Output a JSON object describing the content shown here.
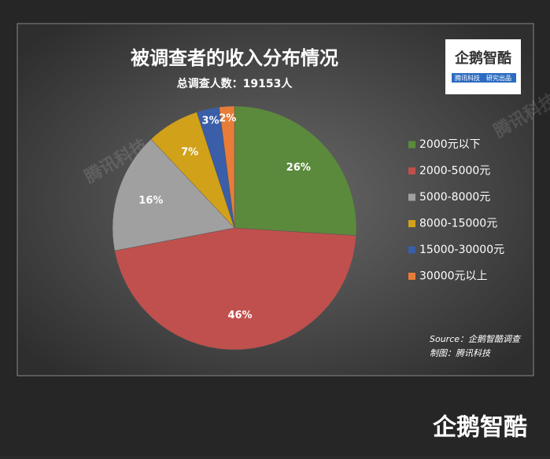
{
  "chart_data": {
    "type": "pie",
    "title": "被调查者的收入分布情况",
    "subtitle": "总调查人数：19153人",
    "categories": [
      "2000元以下",
      "2000-5000元",
      "5000-8000元",
      "8000-15000元",
      "15000-30000元",
      "30000元以上"
    ],
    "values": [
      26,
      46,
      16,
      7,
      3,
      2
    ],
    "value_labels": [
      "26%",
      "46%",
      "16%",
      "7%",
      "3%",
      "2%"
    ],
    "colors": [
      "#5b8a3c",
      "#c0504d",
      "#a0a0a0",
      "#d1a11a",
      "#3a5ea8",
      "#e87d38"
    ],
    "legend": "right",
    "source": "Source：企鹅智酷调查",
    "credit": "制图：腾讯科技"
  },
  "logo": {
    "name": "企鹅智酷",
    "tagline": [
      "腾讯科技",
      "研究出品"
    ]
  },
  "watermark": "腾讯科技",
  "footer_logo": "企鹅智酷"
}
